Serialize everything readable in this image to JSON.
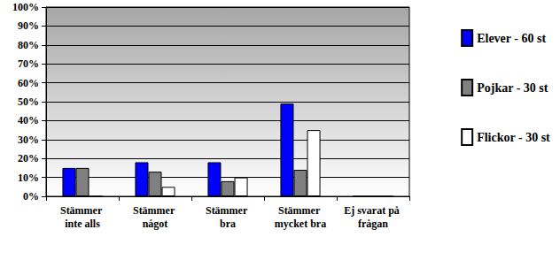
{
  "chart_data": {
    "type": "bar",
    "categories": [
      "Stämmer inte alls",
      "Stämmer något",
      "Stämmer bra",
      "Stämmer mycket bra",
      "Ej svarat på frågan"
    ],
    "series": [
      {
        "name": "Elever - 60 st",
        "color": "#0000ff",
        "values": [
          15,
          18,
          18,
          49,
          0
        ]
      },
      {
        "name": "Pojkar - 30 st",
        "color": "#808080",
        "values": [
          15,
          13,
          8,
          14,
          0
        ]
      },
      {
        "name": "Flickor - 30 st",
        "color": "#ffffff",
        "values": [
          0,
          5,
          10,
          35,
          0
        ]
      }
    ],
    "ylim": [
      0,
      100
    ],
    "yticks": [
      {
        "value": 0,
        "label": "0%"
      },
      {
        "value": 10,
        "label": "10%"
      },
      {
        "value": 20,
        "label": "20%"
      },
      {
        "value": 30,
        "label": "30%"
      },
      {
        "value": 40,
        "label": "40%"
      },
      {
        "value": 50,
        "label": "50%"
      },
      {
        "value": 60,
        "label": "60%"
      },
      {
        "value": 70,
        "label": "70%"
      },
      {
        "value": 80,
        "label": "80%"
      },
      {
        "value": 90,
        "label": "90%"
      },
      {
        "value": 100,
        "label": "100%"
      }
    ],
    "grid": true,
    "legend": "right"
  }
}
